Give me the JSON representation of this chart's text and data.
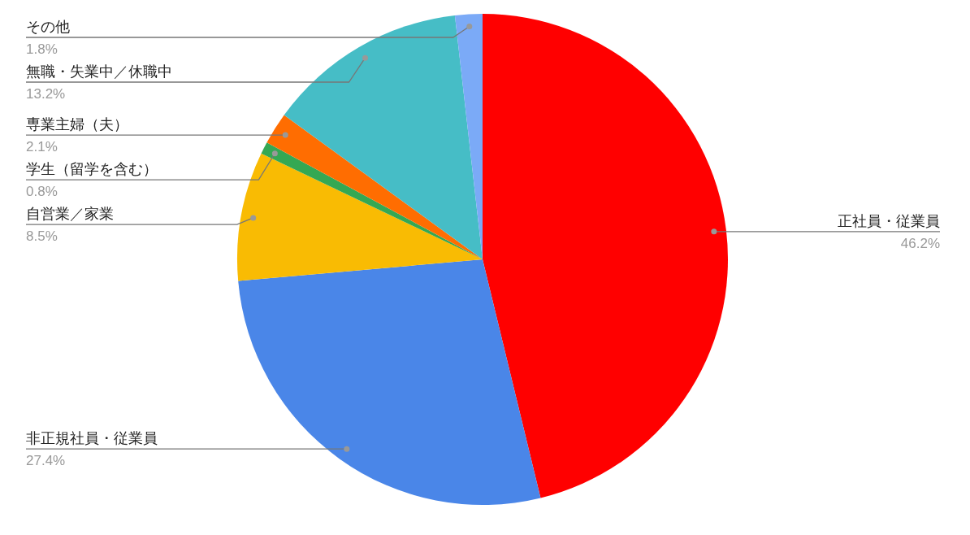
{
  "chart_data": {
    "type": "pie",
    "categories": [
      "正社員・従業員",
      "非正規社員・従業員",
      "自営業／家業",
      "学生（留学を含む）",
      "専業主婦（夫）",
      "無職・失業中／休職中",
      "その他"
    ],
    "values": [
      46.2,
      27.4,
      8.5,
      0.8,
      2.1,
      13.2,
      1.8
    ],
    "colors": [
      "#ff0000",
      "#4a86e8",
      "#f9bb03",
      "#34a853",
      "#ff6d01",
      "#46bdc6",
      "#7baaf7"
    ],
    "value_labels": [
      "46.2%",
      "27.4%",
      "8.5%",
      "0.8%",
      "2.1%",
      "13.2%",
      "1.8%"
    ]
  }
}
